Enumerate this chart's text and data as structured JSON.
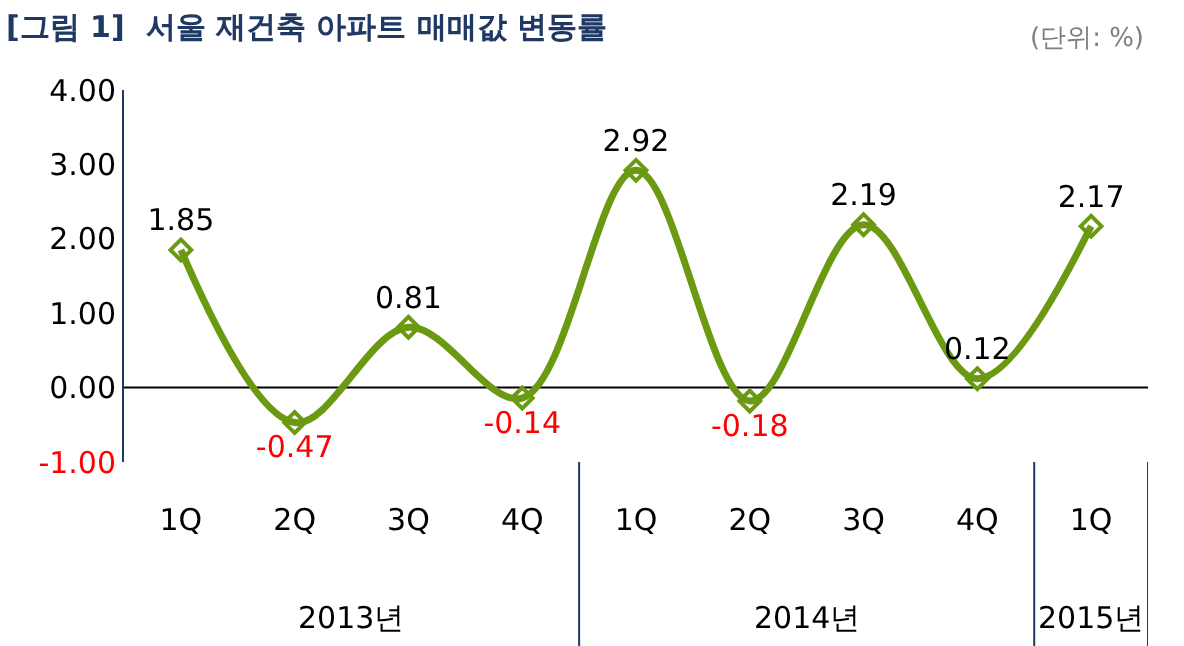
{
  "chart_data": {
    "type": "line",
    "title": "[그림 1]  서울 재건축 아파트 매매값 변동률",
    "subtitle": "(단위: %)",
    "categories": [
      "1Q",
      "2Q",
      "3Q",
      "4Q",
      "1Q",
      "2Q",
      "3Q",
      "4Q",
      "1Q"
    ],
    "series": [
      {
        "color": "#6b9a12",
        "values": [
          1.85,
          -0.47,
          0.81,
          -0.14,
          2.92,
          -0.18,
          2.19,
          0.12,
          2.17
        ]
      }
    ],
    "data_labels": true,
    "marker": "diamond",
    "line_style": "solid",
    "ylim": [
      -1,
      4
    ],
    "yticks": [
      {
        "value": 4,
        "label": "4.00"
      },
      {
        "value": 3,
        "label": "3.00"
      },
      {
        "value": 2,
        "label": "2.00"
      },
      {
        "value": 1,
        "label": "1.00"
      },
      {
        "value": 0,
        "label": "0.00"
      },
      {
        "value": -1,
        "label": "-1.00"
      }
    ],
    "annotations": [
      "2013년",
      "2014년",
      "2015년"
    ],
    "ref_lines": [
      {
        "axis": "y",
        "value": 0,
        "color": "#000000"
      }
    ],
    "grid": false
  }
}
